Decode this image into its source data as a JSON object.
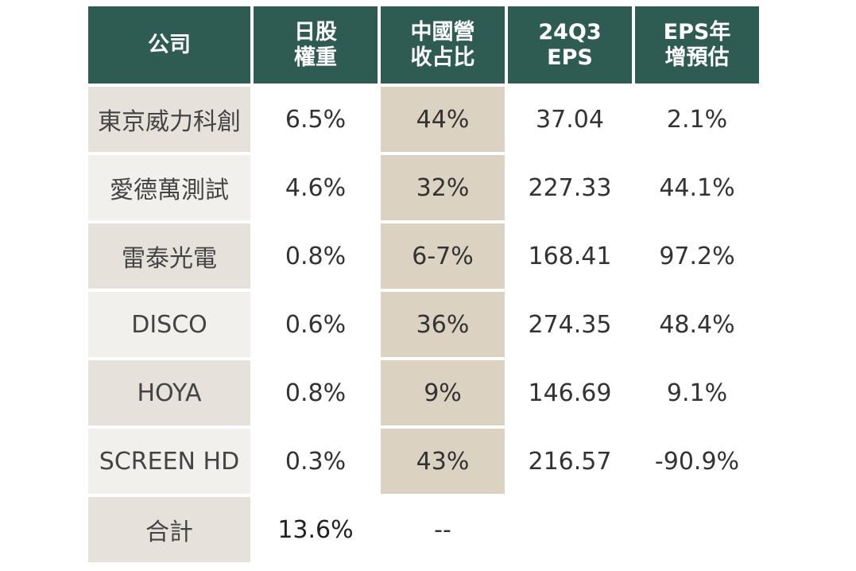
{
  "header": {
    "company": "公司",
    "weight": [
      "日股",
      "權重"
    ],
    "china_share": [
      "中國營",
      "收占比"
    ],
    "eps": [
      "24Q3",
      "EPS"
    ],
    "eps_growth": [
      "EPS年",
      "增預估"
    ]
  },
  "rows": [
    {
      "company": "東京威力科創",
      "weight": "6.5%",
      "china_share": "44%",
      "eps": "37.04",
      "eps_growth": "2.1%"
    },
    {
      "company": "愛德萬測試",
      "weight": "4.6%",
      "china_share": "32%",
      "eps": "227.33",
      "eps_growth": "44.1%"
    },
    {
      "company": "雷泰光電",
      "weight": "0.8%",
      "china_share": "6-7%",
      "eps": "168.41",
      "eps_growth": "97.2%"
    },
    {
      "company": "DISCO",
      "weight": "0.6%",
      "china_share": "36%",
      "eps": "274.35",
      "eps_growth": "48.4%"
    },
    {
      "company": "HOYA",
      "weight": "0.8%",
      "china_share": "9%",
      "eps": "146.69",
      "eps_growth": "9.1%"
    },
    {
      "company": "SCREEN HD",
      "weight": "0.3%",
      "china_share": "43%",
      "eps": "216.57",
      "eps_growth": "-90.9%"
    }
  ],
  "total": {
    "label": "合計",
    "weight": "13.6%",
    "china_share": "--"
  },
  "colors": {
    "header_bg": "#2e5c52",
    "china_col_bg": "#dbd2c2",
    "name_bg_dark": "#e6e2db",
    "name_bg_light": "#f2f0ec"
  }
}
